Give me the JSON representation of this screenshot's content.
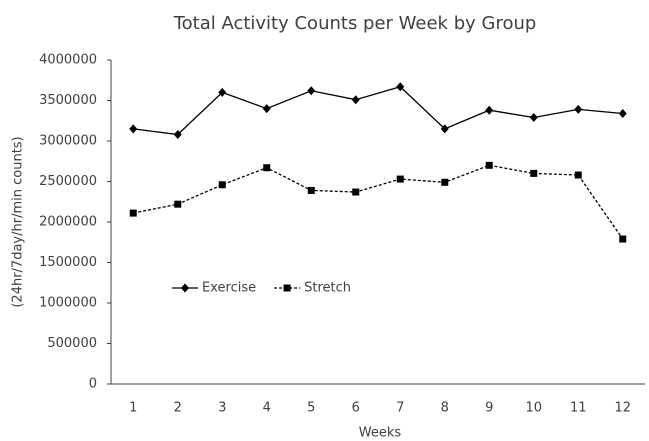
{
  "chart_data": {
    "type": "line",
    "title": "Total Activity Counts per Week by Group",
    "x_label": "Weeks",
    "y_label": "(24hr/7day/hr/min counts)",
    "categories": [
      "1",
      "2",
      "3",
      "4",
      "5",
      "6",
      "7",
      "8",
      "9",
      "10",
      "11",
      "12"
    ],
    "series": [
      {
        "name": "Exercise",
        "color": "#000000",
        "linestyle": "solid",
        "marker": "diamond",
        "values": [
          3150000,
          3080000,
          3600000,
          3400000,
          3620000,
          3510000,
          3670000,
          3150000,
          3380000,
          3290000,
          3390000,
          3340000
        ]
      },
      {
        "name": "Stretch",
        "color": "#000000",
        "linestyle": "dashed",
        "marker": "square",
        "values": [
          2110000,
          2220000,
          2460000,
          2670000,
          2390000,
          2370000,
          2530000,
          2490000,
          2700000,
          2600000,
          2580000,
          1790000
        ]
      }
    ],
    "ylim": [
      0,
      4000000
    ],
    "yticks": [
      0,
      500000,
      1000000,
      1500000,
      2000000,
      2500000,
      3000000,
      3500000,
      4000000
    ],
    "grid": false,
    "legend": "center left"
  }
}
